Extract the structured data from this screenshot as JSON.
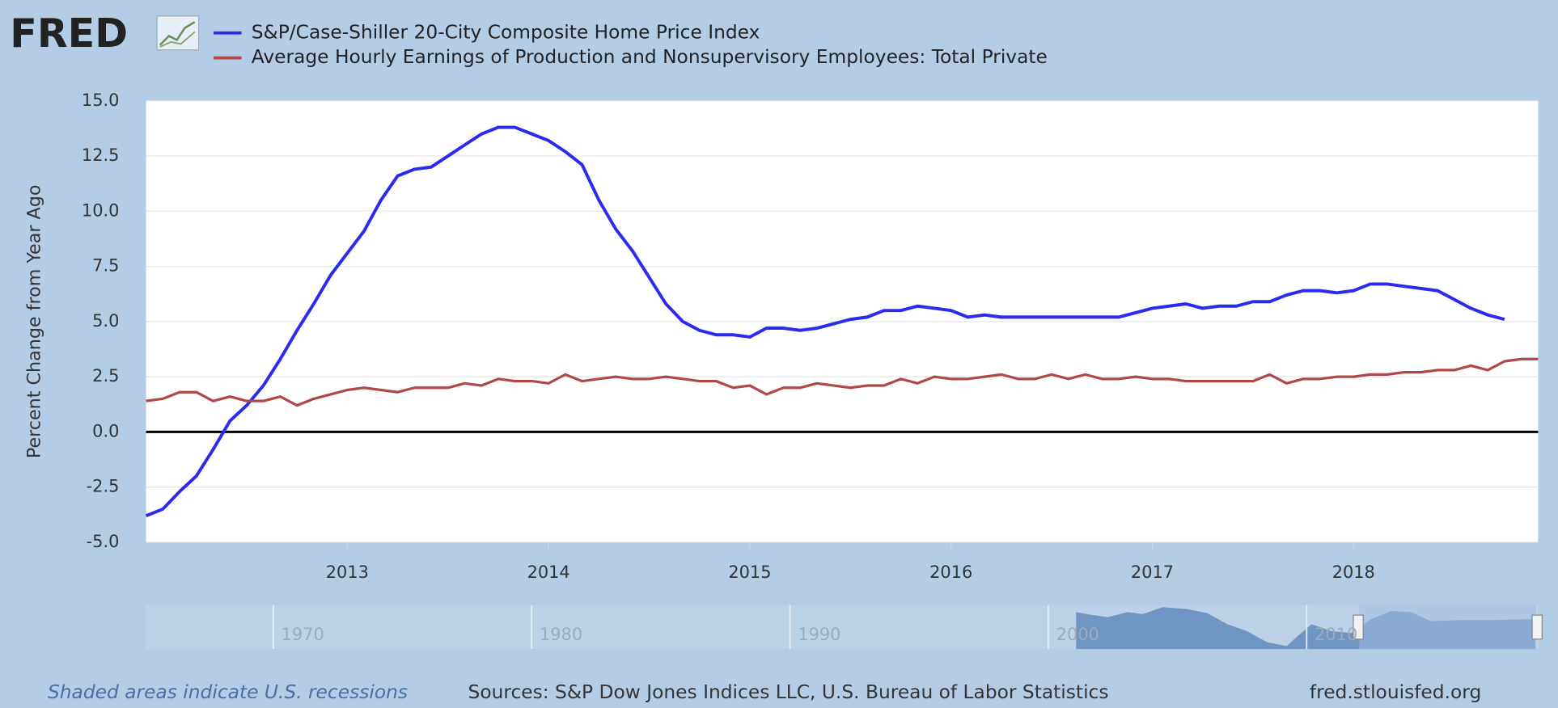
{
  "chart_data": {
    "type": "line",
    "logo": "FRED",
    "ylabel": "Percent Change from Year Ago",
    "x": [
      2012,
      2012.083,
      2012.167,
      2012.25,
      2012.333,
      2012.417,
      2012.5,
      2012.583,
      2012.667,
      2012.75,
      2012.833,
      2012.917,
      2013,
      2013.083,
      2013.167,
      2013.25,
      2013.333,
      2013.417,
      2013.5,
      2013.583,
      2013.667,
      2013.75,
      2013.833,
      2013.917,
      2014,
      2014.083,
      2014.167,
      2014.25,
      2014.333,
      2014.417,
      2014.5,
      2014.583,
      2014.667,
      2014.75,
      2014.833,
      2014.917,
      2015,
      2015.083,
      2015.167,
      2015.25,
      2015.333,
      2015.417,
      2015.5,
      2015.583,
      2015.667,
      2015.75,
      2015.833,
      2015.917,
      2016,
      2016.083,
      2016.167,
      2016.25,
      2016.333,
      2016.417,
      2016.5,
      2016.583,
      2016.667,
      2016.75,
      2016.833,
      2016.917,
      2017,
      2017.083,
      2017.167,
      2017.25,
      2017.333,
      2017.417,
      2017.5,
      2017.583,
      2017.667,
      2017.75,
      2017.833,
      2017.917,
      2018,
      2018.083,
      2018.167,
      2018.25,
      2018.333,
      2018.417,
      2018.5,
      2018.583,
      2018.667,
      2018.75,
      2018.833,
      2018.917
    ],
    "series": [
      {
        "name": "S&P/Case-Shiller 20-City Composite Home Price Index",
        "color": "#2b2bf0",
        "values": [
          -3.8,
          -3.5,
          -2.7,
          -2.0,
          -0.8,
          0.5,
          1.2,
          2.1,
          3.3,
          4.6,
          5.8,
          7.1,
          8.1,
          9.1,
          10.5,
          11.6,
          11.9,
          12.0,
          12.5,
          13.0,
          13.5,
          13.8,
          13.8,
          13.5,
          13.2,
          12.7,
          12.1,
          10.5,
          9.2,
          8.2,
          7.0,
          5.8,
          5.0,
          4.6,
          4.4,
          4.4,
          4.3,
          4.7,
          4.7,
          4.6,
          4.7,
          4.9,
          5.1,
          5.2,
          5.5,
          5.5,
          5.7,
          5.6,
          5.5,
          5.2,
          5.3,
          5.2,
          5.2,
          5.2,
          5.2,
          5.2,
          5.2,
          5.2,
          5.2,
          5.4,
          5.6,
          5.7,
          5.8,
          5.6,
          5.7,
          5.7,
          5.9,
          5.9,
          6.2,
          6.4,
          6.4,
          6.3,
          6.4,
          6.7,
          6.7,
          6.6,
          6.5,
          6.4,
          6.0,
          5.6,
          5.3,
          5.1,
          null,
          null
        ]
      },
      {
        "name": "Average Hourly Earnings of Production and Nonsupervisory Employees: Total Private",
        "color": "#b04848",
        "values": [
          1.4,
          1.5,
          1.8,
          1.8,
          1.4,
          1.6,
          1.4,
          1.4,
          1.6,
          1.2,
          1.5,
          1.7,
          1.9,
          2.0,
          1.9,
          1.8,
          2.0,
          2.0,
          2.0,
          2.2,
          2.1,
          2.4,
          2.3,
          2.3,
          2.2,
          2.6,
          2.3,
          2.4,
          2.5,
          2.4,
          2.4,
          2.5,
          2.4,
          2.3,
          2.3,
          2.0,
          2.1,
          1.7,
          2.0,
          2.0,
          2.2,
          2.1,
          2.0,
          2.1,
          2.1,
          2.4,
          2.2,
          2.5,
          2.4,
          2.4,
          2.5,
          2.6,
          2.4,
          2.4,
          2.6,
          2.4,
          2.6,
          2.4,
          2.4,
          2.5,
          2.4,
          2.4,
          2.3,
          2.3,
          2.3,
          2.3,
          2.3,
          2.6,
          2.2,
          2.4,
          2.4,
          2.5,
          2.5,
          2.6,
          2.6,
          2.7,
          2.7,
          2.8,
          2.8,
          3.0,
          2.8,
          3.2,
          3.3,
          3.3
        ]
      }
    ],
    "xlim": [
      2012,
      2018.917
    ],
    "xticks": [
      2013,
      2014,
      2015,
      2016,
      2017,
      2018
    ],
    "ylim": [
      -5,
      15
    ],
    "yticks": [
      {
        "value": -5,
        "label": "-5.0"
      },
      -2.5,
      {
        "value": 0,
        "label": "0.0"
      },
      2.5,
      {
        "value": 5,
        "label": "5.0"
      },
      7.5,
      {
        "value": 10,
        "label": "10.0"
      },
      12.5,
      {
        "value": 15,
        "label": "15.0"
      }
    ],
    "grid": true,
    "navigator_ticks": [
      1970,
      1980,
      1990,
      2000,
      2010
    ],
    "note": "Shaded areas indicate U.S. recessions",
    "source": "Sources: S&P Dow Jones Indices LLC, U.S. Bureau of Labor Statistics",
    "site": "fred.stlouisfed.org"
  }
}
